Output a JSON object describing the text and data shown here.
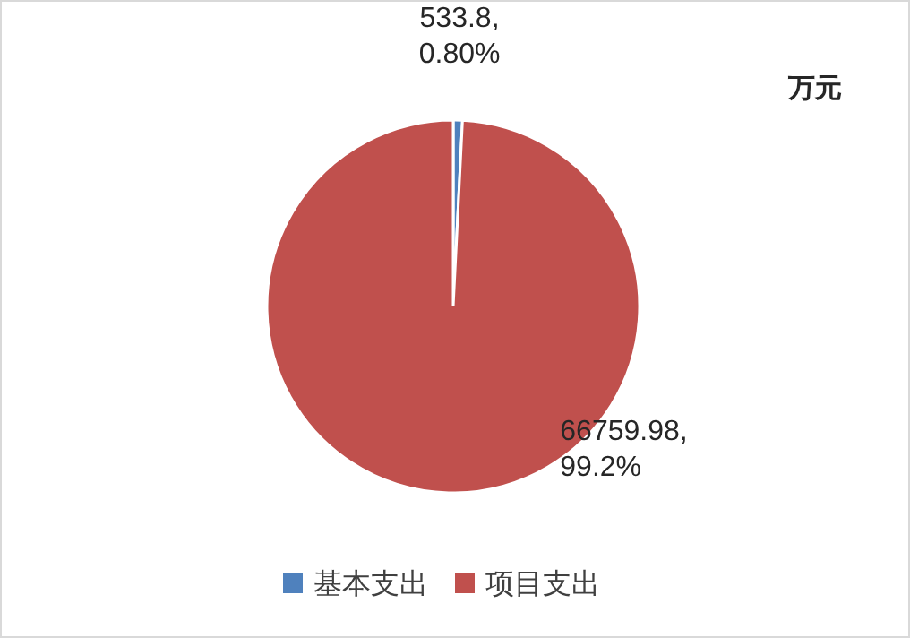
{
  "chart_data": {
    "type": "pie",
    "categories": [
      "基本支出",
      "项目支出"
    ],
    "values": [
      533.8,
      66759.98
    ],
    "colors": [
      "#4f81bd",
      "#c0504d"
    ],
    "value_labels": [
      "533.8, 0.80%",
      "66759.98, 99.2%"
    ],
    "annotations": [
      "万元"
    ],
    "legend": "bottom"
  }
}
